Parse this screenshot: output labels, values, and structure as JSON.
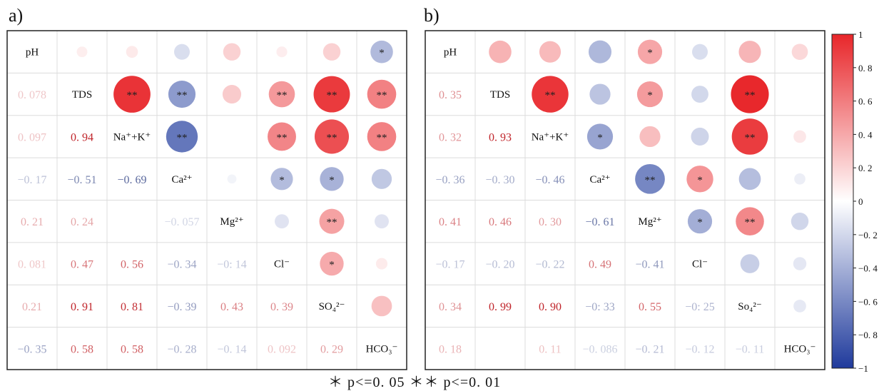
{
  "chart_data": [
    {
      "type": "heatmap",
      "panel_label": "a)",
      "variables": [
        "pH",
        "TDS",
        "Na⁺+K⁺",
        "Ca²⁺",
        "Mg²⁺",
        "Cl⁻",
        "SO₄²⁻",
        "HCO₃⁻"
      ],
      "lower_text": [
        [
          null,
          null,
          null,
          null,
          null,
          null,
          null,
          null
        ],
        [
          "0. 078",
          null,
          null,
          null,
          null,
          null,
          null,
          null
        ],
        [
          "0. 097",
          "0. 94",
          null,
          null,
          null,
          null,
          null,
          null
        ],
        [
          "−0. 17",
          "−0. 51",
          "−0. 69",
          null,
          null,
          null,
          null,
          null
        ],
        [
          "0. 21",
          "0. 24",
          "",
          "−0. 057",
          null,
          null,
          null,
          null
        ],
        [
          "0. 081",
          "0. 47",
          "0. 56",
          "−0. 34",
          "−0: 14",
          null,
          null,
          null
        ],
        [
          "0.21",
          "0. 91",
          "0. 81",
          "−0. 39",
          "0. 43",
          "0. 39",
          null,
          null
        ],
        [
          "−0. 35",
          "0. 58",
          "0. 58",
          "−0. 28",
          "−0. 14",
          "0. 092",
          "0. 29",
          null
        ]
      ],
      "matrix": [
        [
          1,
          0.078,
          0.097,
          -0.17,
          0.21,
          0.081,
          0.21,
          -0.35
        ],
        [
          0.078,
          1,
          0.94,
          -0.51,
          0.24,
          0.47,
          0.91,
          0.58
        ],
        [
          0.097,
          0.94,
          1,
          -0.69,
          0,
          0.56,
          0.81,
          0.58
        ],
        [
          -0.17,
          -0.51,
          -0.69,
          1,
          -0.057,
          -0.34,
          -0.39,
          -0.28
        ],
        [
          0.21,
          0.24,
          0,
          -0.057,
          1,
          -0.14,
          0.43,
          -0.14
        ],
        [
          0.081,
          0.47,
          0.56,
          -0.34,
          -0.14,
          1,
          0.39,
          0.092
        ],
        [
          0.21,
          0.91,
          0.81,
          -0.39,
          0.43,
          0.39,
          1,
          0.29
        ],
        [
          -0.35,
          0.58,
          0.58,
          -0.28,
          -0.14,
          0.092,
          0.29,
          1
        ]
      ],
      "significance": [
        [
          "",
          "",
          "",
          "",
          "",
          "",
          "",
          "*"
        ],
        [
          "",
          "",
          "**",
          "**",
          "",
          "**",
          "**",
          "**"
        ],
        [
          "",
          "**",
          "",
          "**",
          "",
          "**",
          "**",
          "**"
        ],
        [
          "",
          "**",
          "**",
          "",
          "",
          "*",
          "*",
          ""
        ],
        [
          "",
          "",
          "",
          "",
          "",
          "",
          "**",
          ""
        ],
        [
          "",
          "**",
          "**",
          "*",
          "",
          "",
          "*",
          ""
        ],
        [
          "",
          "**",
          "**",
          "*",
          "**",
          "*",
          "",
          ""
        ],
        [
          "*",
          "**",
          "**",
          "",
          "",
          "",
          "",
          ""
        ]
      ]
    },
    {
      "type": "heatmap",
      "panel_label": "b)",
      "variables": [
        "pH",
        "TDS",
        "Na⁺+K⁺",
        "Ca²⁺",
        "Mg²⁺",
        "Cl⁻",
        "So₄²⁻",
        "HCO₃⁻"
      ],
      "lower_text": [
        [
          null,
          null,
          null,
          null,
          null,
          null,
          null,
          null
        ],
        [
          "0. 35",
          null,
          null,
          null,
          null,
          null,
          null,
          null
        ],
        [
          "0. 32",
          "0. 93",
          null,
          null,
          null,
          null,
          null,
          null
        ],
        [
          "−0. 36",
          "−0. 30",
          "−0. 46",
          null,
          null,
          null,
          null,
          null
        ],
        [
          "0. 41",
          "0. 46",
          "0. 30",
          "−0. 61",
          null,
          null,
          null,
          null
        ],
        [
          "−0. 17",
          "−0. 20",
          "−0. 22",
          "0. 49",
          "−0. 41",
          null,
          null,
          null
        ],
        [
          "0. 34",
          "0. 99",
          "0. 90",
          "−0: 33",
          "0. 55",
          "−0: 25",
          null,
          null
        ],
        [
          "0. 18",
          "",
          "0. 11",
          "−0. 086",
          "−0. 21",
          "−0. 12",
          "−0. 11",
          null
        ]
      ],
      "matrix": [
        [
          1,
          0.35,
          0.32,
          -0.36,
          0.41,
          -0.17,
          0.34,
          0.18
        ],
        [
          0.35,
          1,
          0.93,
          -0.3,
          0.46,
          -0.2,
          0.99,
          0
        ],
        [
          0.32,
          0.93,
          1,
          -0.46,
          0.3,
          -0.22,
          0.9,
          0.11
        ],
        [
          -0.36,
          -0.3,
          -0.46,
          1,
          -0.61,
          0.49,
          -0.33,
          -0.086
        ],
        [
          0.41,
          0.46,
          0.3,
          -0.61,
          1,
          -0.41,
          0.55,
          -0.21
        ],
        [
          -0.17,
          -0.2,
          -0.22,
          0.49,
          -0.41,
          1,
          -0.25,
          -0.12
        ],
        [
          0.34,
          0.99,
          0.9,
          -0.33,
          0.55,
          -0.25,
          1,
          -0.11
        ],
        [
          0.18,
          0,
          0.11,
          -0.086,
          -0.21,
          -0.12,
          -0.11,
          1
        ]
      ],
      "significance": [
        [
          "",
          "",
          "",
          "",
          "*",
          "",
          "",
          ""
        ],
        [
          "",
          "",
          "**",
          "",
          "*",
          "",
          "**",
          ""
        ],
        [
          "",
          "**",
          "",
          "*",
          "",
          "",
          "**",
          ""
        ],
        [
          "",
          "",
          "*",
          "",
          "**",
          "*",
          "",
          ""
        ],
        [
          "*",
          "*",
          "",
          "**",
          "",
          "*",
          "**",
          ""
        ],
        [
          "",
          "",
          "",
          "*",
          "*",
          "",
          "",
          ""
        ],
        [
          "",
          "**",
          "**",
          "",
          "**",
          "",
          "",
          ""
        ],
        [
          "",
          "",
          "",
          "",
          "",
          "",
          "",
          ""
        ]
      ]
    }
  ],
  "colorbar": {
    "ticks": [
      "1",
      "0. 8",
      "0. 6",
      "0. 4",
      "0. 2",
      "0",
      "−0. 2",
      "−0. 4",
      "−0. 6",
      "−0. 8",
      "−1"
    ],
    "range": [
      -1,
      1
    ],
    "colors": {
      "negative": "#1f3a9c",
      "zero": "#ffffff",
      "positive": "#e8262a"
    }
  },
  "footnote": "＊ p<=0. 05   ＊＊ p<=0. 01"
}
